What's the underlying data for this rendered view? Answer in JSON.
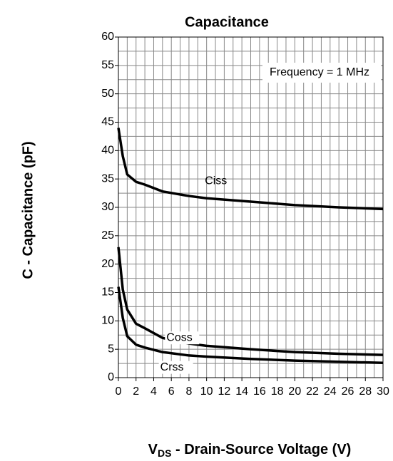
{
  "chart_data": {
    "type": "line",
    "title": "Capacitance",
    "ylabel": "C - Capacitance (pF)",
    "xlabel": {
      "main": "V",
      "sub": "DS",
      "rest": " - Drain-Source Voltage (V)"
    },
    "annotation": "Frequency = 1 MHz",
    "xlim": [
      0,
      30
    ],
    "ylim": [
      0,
      60
    ],
    "xticks": [
      0,
      2,
      4,
      6,
      8,
      10,
      12,
      14,
      16,
      18,
      20,
      22,
      24,
      26,
      28,
      30
    ],
    "yticks": [
      0,
      5,
      10,
      15,
      20,
      25,
      30,
      35,
      40,
      45,
      50,
      55,
      60
    ],
    "xminorticks": [
      1,
      3,
      5,
      7,
      9,
      11,
      13,
      15,
      17,
      19,
      21,
      23,
      25,
      27,
      29
    ],
    "yminorticks": [
      2.5,
      7.5,
      12.5,
      17.5,
      22.5,
      27.5,
      32.5,
      37.5,
      42.5,
      47.5,
      52.5,
      57.5
    ],
    "grid": true,
    "x": [
      0,
      0.5,
      1,
      2,
      3,
      5,
      8,
      10,
      15,
      20,
      25,
      30
    ],
    "series": [
      {
        "name": "Ciss",
        "color": "#000000",
        "values": [
          44,
          39,
          35.8,
          34.5,
          34,
          32.8,
          32,
          31.6,
          31,
          30.4,
          30,
          29.7
        ]
      },
      {
        "name": "Coss",
        "color": "#000000",
        "values": [
          23,
          15.5,
          12,
          9.5,
          8.7,
          7,
          6,
          5.6,
          5,
          4.5,
          4.2,
          4
        ]
      },
      {
        "name": "Crss",
        "color": "#000000",
        "values": [
          16,
          10.5,
          7.3,
          5.8,
          5.3,
          4.5,
          3.9,
          3.7,
          3.3,
          3,
          2.8,
          2.6
        ]
      }
    ]
  }
}
